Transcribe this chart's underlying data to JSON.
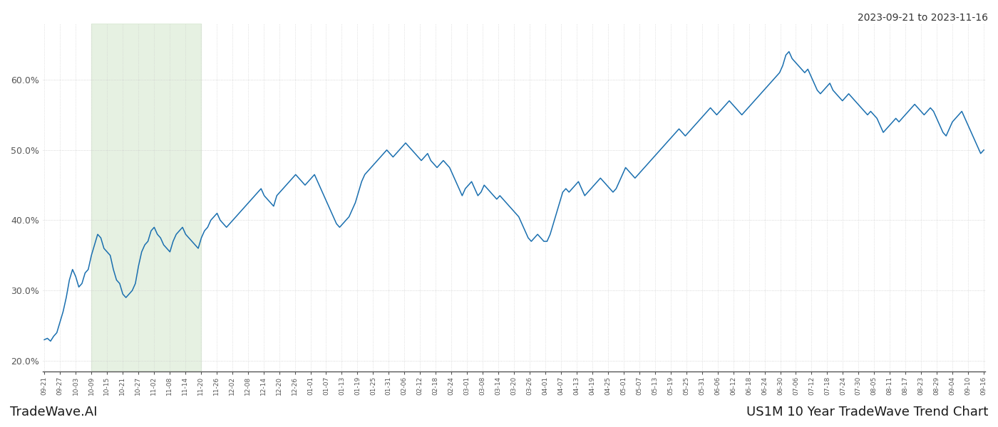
{
  "title_top_right": "2023-09-21 to 2023-11-16",
  "bottom_left": "TradeWave.AI",
  "bottom_right": "US1M 10 Year TradeWave Trend Chart",
  "background_color": "#ffffff",
  "line_color": "#1a6faf",
  "shade_color": "#d6e8d0",
  "shade_alpha": 0.6,
  "ylim": [
    18.5,
    68.0
  ],
  "yticks": [
    20.0,
    30.0,
    40.0,
    50.0,
    60.0
  ],
  "shade_start_label": "10-09",
  "shade_end_label": "11-20",
  "x_labels": [
    "09-21",
    "09-27",
    "10-03",
    "10-09",
    "10-15",
    "10-21",
    "10-27",
    "11-02",
    "11-08",
    "11-14",
    "11-20",
    "11-26",
    "12-02",
    "12-08",
    "12-14",
    "12-20",
    "12-26",
    "01-01",
    "01-07",
    "01-13",
    "01-19",
    "01-25",
    "01-31",
    "02-06",
    "02-12",
    "02-18",
    "02-24",
    "03-01",
    "03-08",
    "03-14",
    "03-20",
    "03-26",
    "04-01",
    "04-07",
    "04-13",
    "04-19",
    "04-25",
    "05-01",
    "05-07",
    "05-13",
    "05-19",
    "05-25",
    "05-31",
    "06-06",
    "06-12",
    "06-18",
    "06-24",
    "06-30",
    "07-06",
    "07-12",
    "07-18",
    "07-24",
    "07-30",
    "08-05",
    "08-11",
    "08-17",
    "08-23",
    "08-29",
    "09-04",
    "09-10",
    "09-16"
  ],
  "values": [
    23.0,
    23.2,
    22.8,
    23.5,
    24.0,
    25.5,
    27.0,
    29.0,
    31.5,
    33.0,
    32.0,
    30.5,
    31.0,
    32.5,
    33.0,
    35.0,
    36.5,
    38.0,
    37.5,
    36.0,
    35.5,
    35.0,
    33.0,
    31.5,
    31.0,
    29.5,
    29.0,
    29.5,
    30.0,
    31.0,
    33.5,
    35.5,
    36.5,
    37.0,
    38.5,
    39.0,
    38.0,
    37.5,
    36.5,
    36.0,
    35.5,
    37.0,
    38.0,
    38.5,
    39.0,
    38.0,
    37.5,
    37.0,
    36.5,
    36.0,
    37.5,
    38.5,
    39.0,
    40.0,
    40.5,
    41.0,
    40.0,
    39.5,
    39.0,
    39.5,
    40.0,
    40.5,
    41.0,
    41.5,
    42.0,
    42.5,
    43.0,
    43.5,
    44.0,
    44.5,
    43.5,
    43.0,
    42.5,
    42.0,
    43.5,
    44.0,
    44.5,
    45.0,
    45.5,
    46.0,
    46.5,
    46.0,
    45.5,
    45.0,
    45.5,
    46.0,
    46.5,
    45.5,
    44.5,
    43.5,
    42.5,
    41.5,
    40.5,
    39.5,
    39.0,
    39.5,
    40.0,
    40.5,
    41.5,
    42.5,
    44.0,
    45.5,
    46.5,
    47.0,
    47.5,
    48.0,
    48.5,
    49.0,
    49.5,
    50.0,
    49.5,
    49.0,
    49.5,
    50.0,
    50.5,
    51.0,
    50.5,
    50.0,
    49.5,
    49.0,
    48.5,
    49.0,
    49.5,
    48.5,
    48.0,
    47.5,
    48.0,
    48.5,
    48.0,
    47.5,
    46.5,
    45.5,
    44.5,
    43.5,
    44.5,
    45.0,
    45.5,
    44.5,
    43.5,
    44.0,
    45.0,
    44.5,
    44.0,
    43.5,
    43.0,
    43.5,
    43.0,
    42.5,
    42.0,
    41.5,
    41.0,
    40.5,
    39.5,
    38.5,
    37.5,
    37.0,
    37.5,
    38.0,
    37.5,
    37.0,
    37.0,
    38.0,
    39.5,
    41.0,
    42.5,
    44.0,
    44.5,
    44.0,
    44.5,
    45.0,
    45.5,
    44.5,
    43.5,
    44.0,
    44.5,
    45.0,
    45.5,
    46.0,
    45.5,
    45.0,
    44.5,
    44.0,
    44.5,
    45.5,
    46.5,
    47.5,
    47.0,
    46.5,
    46.0,
    46.5,
    47.0,
    47.5,
    48.0,
    48.5,
    49.0,
    49.5,
    50.0,
    50.5,
    51.0,
    51.5,
    52.0,
    52.5,
    53.0,
    52.5,
    52.0,
    52.5,
    53.0,
    53.5,
    54.0,
    54.5,
    55.0,
    55.5,
    56.0,
    55.5,
    55.0,
    55.5,
    56.0,
    56.5,
    57.0,
    56.5,
    56.0,
    55.5,
    55.0,
    55.5,
    56.0,
    56.5,
    57.0,
    57.5,
    58.0,
    58.5,
    59.0,
    59.5,
    60.0,
    60.5,
    61.0,
    62.0,
    63.5,
    64.0,
    63.0,
    62.5,
    62.0,
    61.5,
    61.0,
    61.5,
    60.5,
    59.5,
    58.5,
    58.0,
    58.5,
    59.0,
    59.5,
    58.5,
    58.0,
    57.5,
    57.0,
    57.5,
    58.0,
    57.5,
    57.0,
    56.5,
    56.0,
    55.5,
    55.0,
    55.5,
    55.0,
    54.5,
    53.5,
    52.5,
    53.0,
    53.5,
    54.0,
    54.5,
    54.0,
    54.5,
    55.0,
    55.5,
    56.0,
    56.5,
    56.0,
    55.5,
    55.0,
    55.5,
    56.0,
    55.5,
    54.5,
    53.5,
    52.5,
    52.0,
    53.0,
    54.0,
    54.5,
    55.0,
    55.5,
    54.5,
    53.5,
    52.5,
    51.5,
    50.5,
    49.5,
    50.0
  ]
}
